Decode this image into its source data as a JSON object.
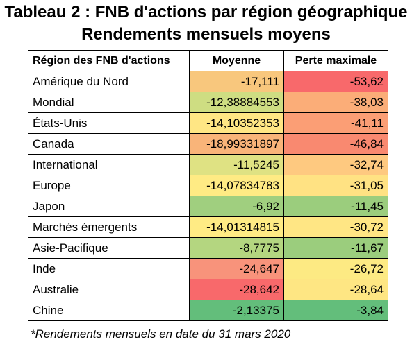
{
  "title_line1": "Tableau 2 : FNB d'actions par région géographique",
  "title_line2": "Rendements mensuels moyens",
  "chart_data": {
    "type": "table",
    "columns": [
      "Région des FNB d'actions",
      "Moyenne",
      "Perte maximale"
    ],
    "rows": [
      {
        "region": "Amérique du Nord",
        "moyenne": "-17,111",
        "perte": "-53,62",
        "moyenne_color": "#f8c77d",
        "perte_color": "#f8696b"
      },
      {
        "region": "Mondial",
        "moyenne": "-12,38884553",
        "perte": "-38,03",
        "moyenne_color": "#cedd82",
        "perte_color": "#fbad78"
      },
      {
        "region": "États-Unis",
        "moyenne": "-14,10352353",
        "perte": "-41,11",
        "moyenne_color": "#ffe684",
        "perte_color": "#fb9e75"
      },
      {
        "region": "Canada",
        "moyenne": "-18,99331897",
        "perte": "-46,84",
        "moyenne_color": "#f9b479",
        "perte_color": "#f98970"
      },
      {
        "region": "International",
        "moyenne": "-11,5245",
        "perte": "-32,74",
        "moyenne_color": "#dfe283",
        "perte_color": "#fec980"
      },
      {
        "region": "Europe",
        "moyenne": "-14,07834783",
        "perte": "-31,05",
        "moyenne_color": "#ffeb84",
        "perte_color": "#ffe283"
      },
      {
        "region": "Japon",
        "moyenne": "-6,92",
        "perte": "-11,45",
        "moyenne_color": "#a0cf7f",
        "perte_color": "#9bcd7d"
      },
      {
        "region": "Marchés émergents",
        "moyenne": "-14,01314815",
        "perte": "-30,72",
        "moyenne_color": "#ffeb84",
        "perte_color": "#ffe684"
      },
      {
        "region": "Asie-Pacifique",
        "moyenne": "-8,7775",
        "perte": "-11,67",
        "moyenne_color": "#b4d680",
        "perte_color": "#9bcd7d"
      },
      {
        "region": "Inde",
        "moyenne": "-24,647",
        "perte": "-26,72",
        "moyenne_color": "#f8937b",
        "perte_color": "#fdea83"
      },
      {
        "region": "Australie",
        "moyenne": "-28,642",
        "perte": "-28,64",
        "moyenne_color": "#f8696b",
        "perte_color": "#fee683"
      },
      {
        "region": "Chine",
        "moyenne": "-2,13375",
        "perte": "-3,84",
        "moyenne_color": "#63be7b",
        "perte_color": "#63be7b"
      }
    ]
  },
  "footnote": "*Rendements mensuels en date du 31 mars 2020"
}
